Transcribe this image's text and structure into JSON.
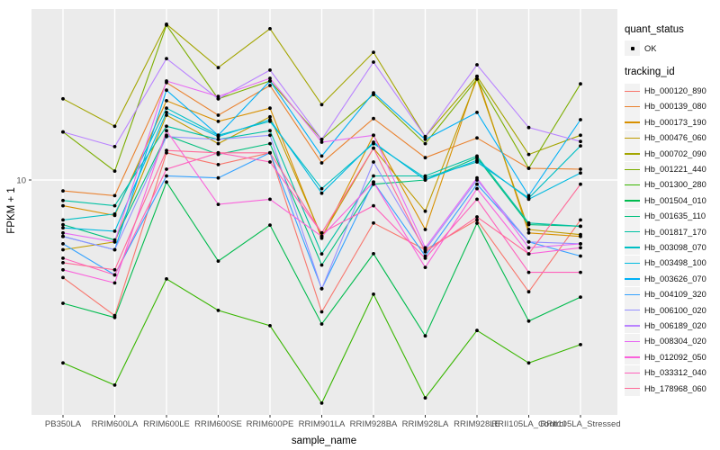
{
  "axes": {
    "x_title": "sample_name",
    "y_title": "FPKM + 1",
    "y_tick_label": "10"
  },
  "legend": {
    "quant_status_title": "quant_status",
    "quant_status_items": [
      {
        "label": "OK",
        "marker": "black-point"
      }
    ],
    "tracking_id_title": "tracking_id"
  },
  "colors": {
    "panel_bg": "#EBEBEB",
    "grid": "#FFFFFF",
    "tick_text": "#4D4D4D",
    "point": "#000000",
    "legend_key_bg": "#F2F2F2"
  },
  "chart_data": {
    "type": "line",
    "title": "",
    "xlabel": "sample_name",
    "ylabel": "FPKM + 1",
    "y_scale": "log10",
    "ylim": [
      1.04,
      52
    ],
    "y_ticks": [
      10
    ],
    "y_tick_labels": [
      "10"
    ],
    "grid": "white major gridlines on gray panel",
    "legend_position": "right",
    "point_marker": "small black dot at every vertex",
    "categories": [
      "PB350LA",
      "RRIM600LA",
      "RRIM600LE",
      "RRIM600SE",
      "RRIM600PE",
      "RRIM901LA",
      "RRIM928BA",
      "RRIM928LA",
      "RRIM928LE",
      "RRII105LA_Control",
      "RRII105LA_Stressed"
    ],
    "series": [
      {
        "name": "Hb_000120_890",
        "color": "#F8766D",
        "values": [
          3.9,
          2.7,
          13.0,
          11.6,
          13.0,
          2.8,
          6.6,
          5.1,
          6.8,
          3.4,
          6.8
        ]
      },
      {
        "name": "Hb_000139_080",
        "color": "#EA8331",
        "values": [
          9.0,
          8.6,
          25.6,
          18.7,
          24.9,
          11.8,
          18.1,
          12.4,
          15.0,
          11.2,
          11.1
        ]
      },
      {
        "name": "Hb_000173_190",
        "color": "#D89000",
        "values": [
          7.8,
          7.1,
          21.5,
          17.6,
          20.0,
          5.7,
          15.4,
          6.2,
          27.2,
          6.0,
          5.8
        ]
      },
      {
        "name": "Hb_000476_060",
        "color": "#C09B00",
        "values": [
          5.1,
          5.5,
          18.7,
          14.2,
          18.4,
          5.8,
          13.6,
          7.4,
          26.5,
          6.2,
          5.9
        ]
      },
      {
        "name": "Hb_000702_090",
        "color": "#A3A500",
        "values": [
          21.9,
          16.8,
          45.0,
          29.6,
          43.1,
          20.7,
          34.3,
          15.2,
          27.2,
          12.8,
          15.4
        ]
      },
      {
        "name": "Hb_001221_440",
        "color": "#7CAE00",
        "values": [
          15.9,
          10.9,
          44.6,
          21.9,
          26.0,
          14.8,
          22.8,
          14.2,
          26.5,
          11.2,
          25.3
        ]
      },
      {
        "name": "Hb_001300_280",
        "color": "#39B600",
        "values": [
          1.71,
          1.38,
          3.85,
          2.84,
          2.45,
          1.16,
          3.32,
          1.22,
          2.34,
          1.71,
          2.04
        ]
      },
      {
        "name": "Hb_001504_010",
        "color": "#00BB4E",
        "values": [
          3.04,
          2.65,
          9.8,
          4.57,
          6.47,
          2.49,
          4.91,
          2.22,
          6.59,
          2.56,
          3.23
        ]
      },
      {
        "name": "Hb_001635_110",
        "color": "#00BF7D",
        "values": [
          6.5,
          5.6,
          15.4,
          12.8,
          14.2,
          4.4,
          9.6,
          10.0,
          12.4,
          6.5,
          6.4
        ]
      },
      {
        "name": "Hb_001817_170",
        "color": "#00C1A3",
        "values": [
          8.2,
          7.8,
          16.8,
          14.8,
          16.1,
          4.9,
          10.4,
          10.4,
          12.6,
          6.6,
          6.4
        ]
      },
      {
        "name": "Hb_003098_070",
        "color": "#00BFC4",
        "values": [
          6.8,
          7.2,
          20.0,
          15.4,
          17.6,
          9.2,
          14.2,
          10.2,
          11.9,
          8.4,
          13.9
        ]
      },
      {
        "name": "Hb_003498_100",
        "color": "#00BAE0",
        "values": [
          6.3,
          6.1,
          19.2,
          15.2,
          17.9,
          8.8,
          14.4,
          10.0,
          12.1,
          8.3,
          10.7
        ]
      },
      {
        "name": "Hb_003626_070",
        "color": "#00B0F6",
        "values": [
          5.8,
          5.1,
          23.8,
          15.4,
          26.0,
          12.6,
          23.2,
          14.8,
          19.2,
          8.6,
          17.9
        ]
      },
      {
        "name": "Hb_004109_320",
        "color": "#35A2FF",
        "values": [
          5.4,
          4.0,
          10.4,
          10.2,
          13.0,
          3.5,
          9.8,
          4.8,
          9.6,
          5.5,
          4.8
        ]
      },
      {
        "name": "Hb_006100_020",
        "color": "#9590FF",
        "values": [
          5.8,
          5.1,
          15.2,
          14.8,
          15.4,
          3.5,
          11.9,
          5.1,
          10.0,
          5.5,
          5.4
        ]
      },
      {
        "name": "Hb_006189_020",
        "color": "#B983FF",
        "values": [
          15.9,
          13.8,
          32.3,
          21.9,
          28.9,
          14.8,
          31.2,
          15.2,
          30.4,
          16.6,
          14.5
        ]
      },
      {
        "name": "Hb_008304_020",
        "color": "#E76BF3",
        "values": [
          6.0,
          5.5,
          26.0,
          22.4,
          26.7,
          14.4,
          15.4,
          5.2,
          10.2,
          5.2,
          5.4
        ]
      },
      {
        "name": "Hb_012092_050",
        "color": "#FA62DB",
        "values": [
          4.2,
          3.7,
          16.1,
          7.9,
          8.3,
          5.8,
          9.8,
          4.3,
          9.2,
          4.9,
          5.2
        ]
      },
      {
        "name": "Hb_033312_040",
        "color": "#FF62BC",
        "values": [
          4.7,
          4.0,
          11.1,
          13.0,
          11.9,
          6.0,
          7.8,
          4.7,
          8.3,
          4.1,
          4.1
        ]
      },
      {
        "name": "Hb_178968_060",
        "color": "#FF6A98",
        "values": [
          4.5,
          4.2,
          13.3,
          13.0,
          13.0,
          6.0,
          13.6,
          5.0,
          7.0,
          4.9,
          9.6
        ]
      }
    ]
  }
}
